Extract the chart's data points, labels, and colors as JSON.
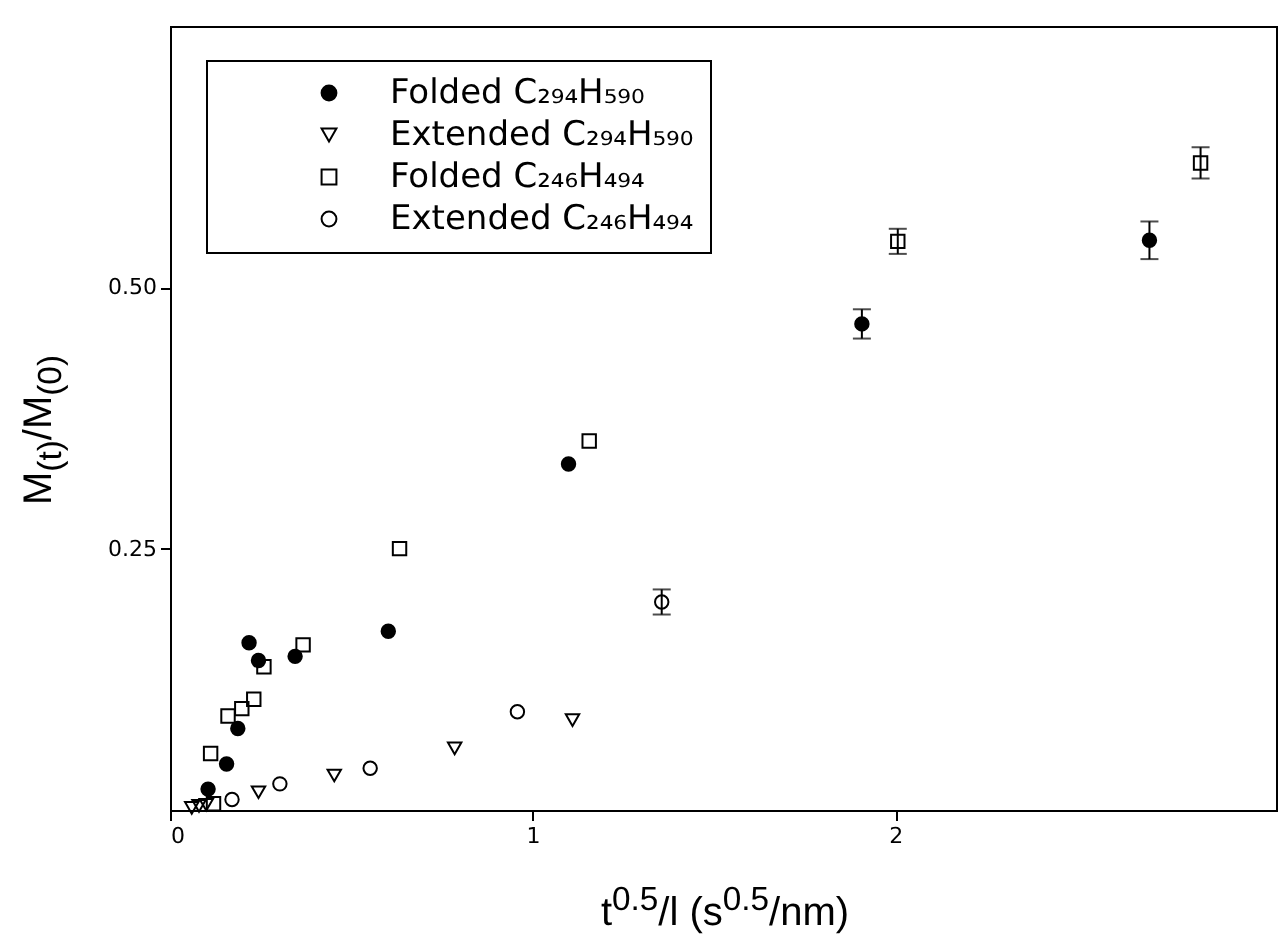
{
  "chart_data": {
    "type": "scatter",
    "xlabel": "t$^{0.5}$/l (s$^{0.5}$/nm)",
    "ylabel": "M$_{(t)}$/M$_{(0)}$",
    "xlim": [
      0,
      3.05
    ],
    "ylim": [
      0,
      0.75
    ],
    "xticks": [
      0,
      1,
      2
    ],
    "yticks": [
      {
        "value": 0.25,
        "label": "0.25"
      },
      {
        "value": 0.5,
        "label": "0.50"
      }
    ],
    "grid": false,
    "legend": "top left",
    "series": [
      {
        "name": "Folded C₂₉₄H₅₉₀",
        "color": "#000000",
        "marker": "circle",
        "x": [
          0.105,
          0.156,
          0.187,
          0.218,
          0.244,
          0.345,
          0.602,
          1.099,
          1.908,
          2.701
        ],
        "values": [
          0.02,
          0.044,
          0.078,
          0.16,
          0.143,
          0.147,
          0.171,
          0.331,
          0.465,
          0.545
        ],
        "errors": [
          null,
          null,
          null,
          null,
          null,
          null,
          null,
          null,
          0.014,
          0.018
        ]
      },
      {
        "name": "Extended C₂₉₄H₅₉₀",
        "color": "#000000",
        "marker": "triangle-down",
        "x": [
          0.06,
          0.08,
          0.1,
          0.244,
          0.453,
          0.785,
          1.11
        ],
        "values": [
          0.002,
          0.004,
          0.005,
          0.017,
          0.033,
          0.059,
          0.086
        ]
      },
      {
        "name": "Folded C₂₄₆H₄₉₄",
        "color": "#000000",
        "marker": "square",
        "x": [
          0.12,
          0.112,
          0.16,
          0.198,
          0.231,
          0.259,
          0.367,
          0.633,
          1.156,
          2.007,
          2.842
        ],
        "values": [
          0.006,
          0.054,
          0.09,
          0.097,
          0.106,
          0.137,
          0.158,
          0.25,
          0.353,
          0.544,
          0.619
        ],
        "errors": [
          null,
          null,
          null,
          null,
          null,
          null,
          null,
          null,
          null,
          0.012,
          0.015
        ]
      },
      {
        "name": "Extended C₂₄₆H₄₉₄",
        "color": "#000000",
        "marker": "circle-open",
        "x": [
          0.171,
          0.303,
          0.552,
          0.958,
          1.356
        ],
        "values": [
          0.01,
          0.025,
          0.04,
          0.094,
          0.199
        ],
        "errors": [
          null,
          null,
          null,
          null,
          0.012
        ]
      }
    ]
  }
}
